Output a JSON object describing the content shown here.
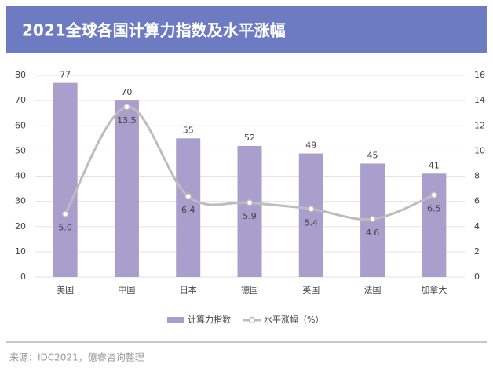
{
  "chart_data": {
    "type": "bar",
    "title": "2021全球各国计算力指数及水平涨幅",
    "categories": [
      "美国",
      "中国",
      "日本",
      "德国",
      "英国",
      "法国",
      "加拿大"
    ],
    "series": [
      {
        "name": "计算力指数",
        "color": "#a89fcc",
        "type": "bar",
        "values": [
          77,
          70,
          55,
          52,
          49,
          45,
          41
        ]
      },
      {
        "name": "水平涨幅（%）",
        "color": "#bdbdbd",
        "type": "line",
        "axis": "y2",
        "values": [
          5.0,
          13.5,
          6.4,
          5.9,
          5.4,
          4.6,
          6.5
        ],
        "value_labels": [
          "5.0",
          "13.5",
          "6.4",
          "5.9",
          "5.4",
          "4.6",
          "6.5"
        ]
      }
    ],
    "ylim": [
      0,
      80
    ],
    "yticks": [
      0,
      10,
      20,
      30,
      40,
      50,
      60,
      70,
      80
    ],
    "y2lim": [
      0,
      16
    ],
    "y2ticks": [
      0,
      2,
      4,
      6,
      8,
      10,
      12,
      14,
      16
    ],
    "grid": true,
    "legend": "bottom",
    "source": "来源：IDC2021，億睿咨询整理"
  }
}
